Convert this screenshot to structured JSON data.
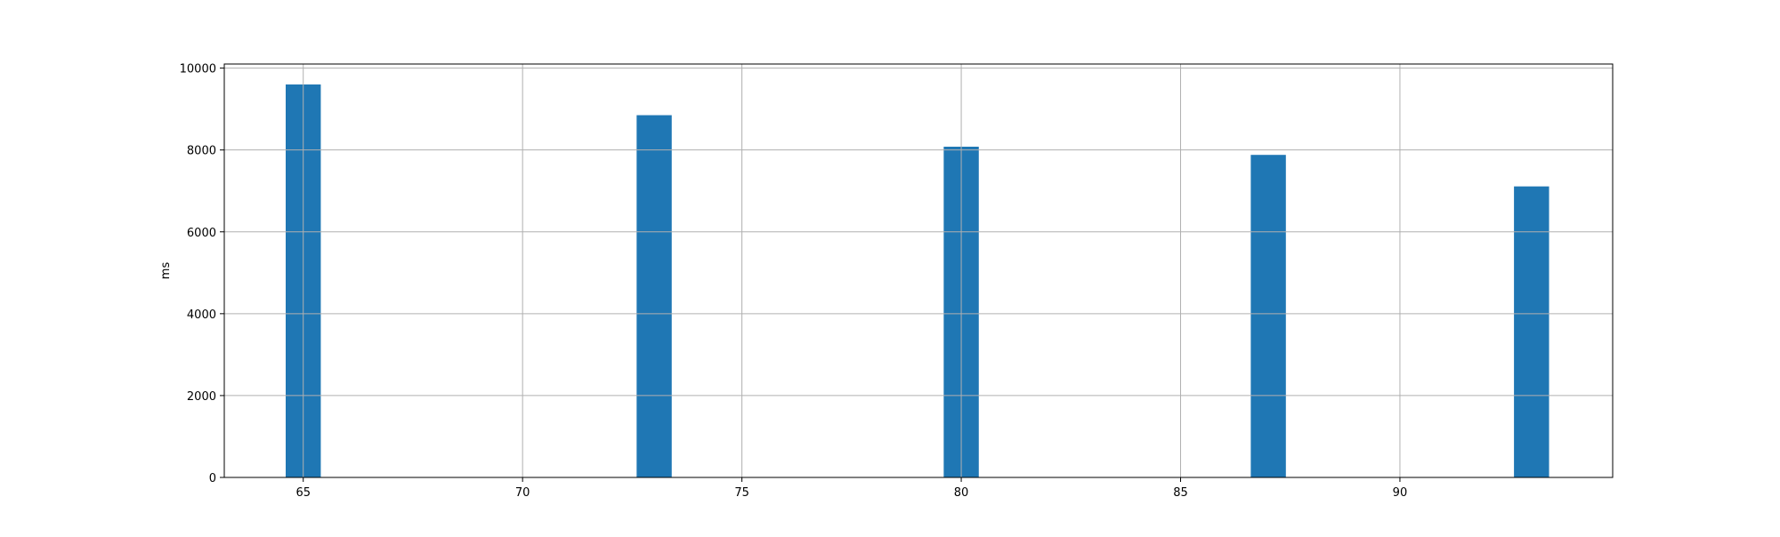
{
  "chart_data": {
    "type": "bar",
    "title": "",
    "xlabel": "",
    "ylabel": "ms",
    "x": [
      65,
      73,
      80,
      87,
      93
    ],
    "values": [
      9600,
      8850,
      8080,
      7880,
      7110
    ],
    "xlim": [
      63.2,
      94.85
    ],
    "ylim": [
      0,
      10100
    ],
    "xticks": [
      65,
      70,
      75,
      80,
      85,
      90
    ],
    "yticks": [
      0,
      2000,
      4000,
      6000,
      8000,
      10000
    ],
    "bar_width": 0.8,
    "grid": true,
    "colors": {
      "bar": "#1f77b4",
      "grid": "#b0b0b0",
      "axes": "#000000"
    }
  }
}
